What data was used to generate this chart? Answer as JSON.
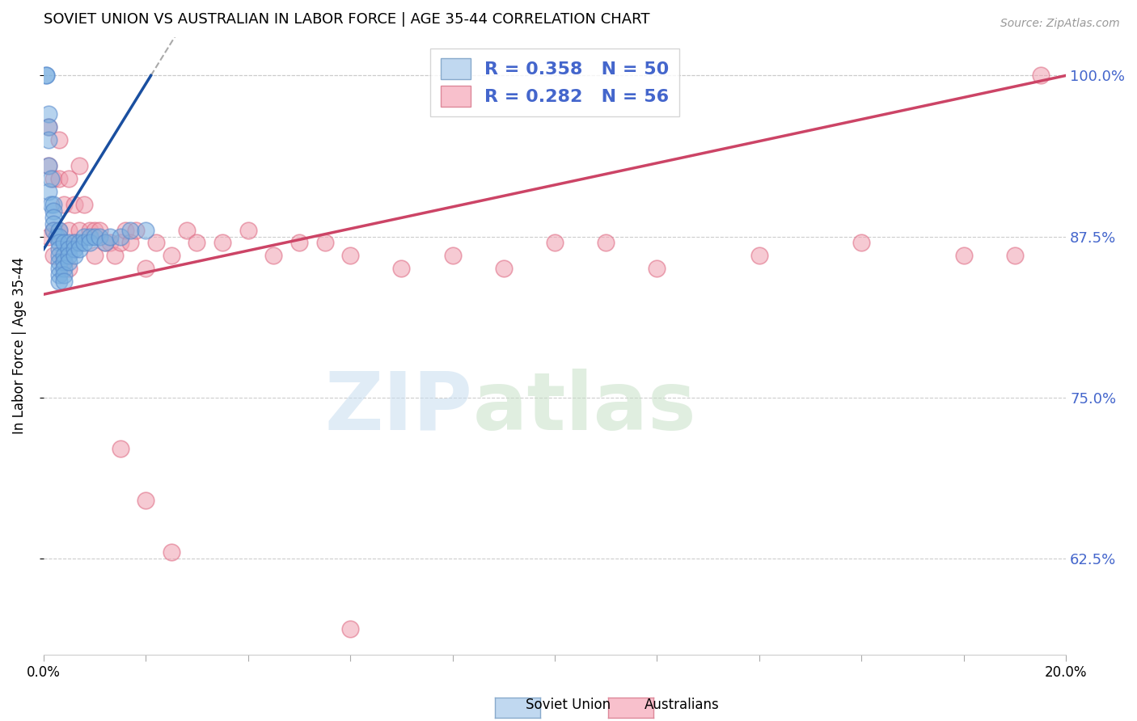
{
  "title": "SOVIET UNION VS AUSTRALIAN IN LABOR FORCE | AGE 35-44 CORRELATION CHART",
  "source": "Source: ZipAtlas.com",
  "ylabel": "In Labor Force | Age 35-44",
  "xlim": [
    0.0,
    0.2
  ],
  "ylim": [
    0.55,
    1.03
  ],
  "yticks": [
    0.625,
    0.75,
    0.875,
    1.0
  ],
  "ytick_labels": [
    "62.5%",
    "75.0%",
    "87.5%",
    "100.0%"
  ],
  "xtick_labels_shown": [
    "0.0%",
    "20.0%"
  ],
  "soviet_R": 0.358,
  "soviet_N": 50,
  "aus_R": 0.282,
  "aus_N": 56,
  "soviet_color": "#7ab0e0",
  "soviet_edge_color": "#5588cc",
  "aus_color": "#f0a0b0",
  "aus_edge_color": "#dd6680",
  "soviet_trend_color": "#1a4fa0",
  "aus_trend_color": "#cc4466",
  "ref_line_color": "#aaaaaa",
  "background_color": "#ffffff",
  "grid_color": "#cccccc",
  "right_axis_color": "#4466cc",
  "legend_box_soviet": "#c0d8f0",
  "legend_box_aus": "#f8c0cc",
  "soviet_x": [
    0.0005,
    0.0005,
    0.001,
    0.001,
    0.001,
    0.001,
    0.001,
    0.0015,
    0.0015,
    0.002,
    0.002,
    0.002,
    0.002,
    0.002,
    0.0025,
    0.003,
    0.003,
    0.003,
    0.003,
    0.003,
    0.003,
    0.003,
    0.003,
    0.003,
    0.004,
    0.004,
    0.004,
    0.004,
    0.004,
    0.004,
    0.005,
    0.005,
    0.005,
    0.005,
    0.006,
    0.006,
    0.006,
    0.007,
    0.007,
    0.008,
    0.008,
    0.009,
    0.009,
    0.01,
    0.011,
    0.012,
    0.013,
    0.015,
    0.017,
    0.02
  ],
  "soviet_y": [
    1.0,
    1.0,
    0.97,
    0.96,
    0.95,
    0.93,
    0.91,
    0.92,
    0.9,
    0.9,
    0.895,
    0.89,
    0.885,
    0.88,
    0.875,
    0.88,
    0.875,
    0.87,
    0.865,
    0.86,
    0.855,
    0.85,
    0.845,
    0.84,
    0.87,
    0.86,
    0.855,
    0.85,
    0.845,
    0.84,
    0.87,
    0.865,
    0.86,
    0.855,
    0.87,
    0.865,
    0.86,
    0.87,
    0.865,
    0.875,
    0.87,
    0.875,
    0.87,
    0.875,
    0.875,
    0.87,
    0.875,
    0.875,
    0.88,
    0.88
  ],
  "aus_x": [
    0.001,
    0.001,
    0.001,
    0.002,
    0.002,
    0.002,
    0.003,
    0.003,
    0.003,
    0.004,
    0.004,
    0.005,
    0.005,
    0.005,
    0.006,
    0.006,
    0.007,
    0.007,
    0.008,
    0.009,
    0.01,
    0.01,
    0.011,
    0.012,
    0.013,
    0.014,
    0.015,
    0.016,
    0.017,
    0.018,
    0.02,
    0.022,
    0.025,
    0.028,
    0.03,
    0.035,
    0.04,
    0.045,
    0.05,
    0.055,
    0.06,
    0.07,
    0.08,
    0.09,
    0.1,
    0.11,
    0.12,
    0.14,
    0.16,
    0.18,
    0.19,
    0.195,
    0.015,
    0.02,
    0.025,
    0.06
  ],
  "aus_y": [
    0.875,
    0.96,
    0.93,
    0.92,
    0.88,
    0.86,
    0.95,
    0.92,
    0.88,
    0.9,
    0.855,
    0.92,
    0.88,
    0.85,
    0.9,
    0.87,
    0.93,
    0.88,
    0.9,
    0.88,
    0.88,
    0.86,
    0.88,
    0.87,
    0.87,
    0.86,
    0.87,
    0.88,
    0.87,
    0.88,
    0.85,
    0.87,
    0.86,
    0.88,
    0.87,
    0.87,
    0.88,
    0.86,
    0.87,
    0.87,
    0.86,
    0.85,
    0.86,
    0.85,
    0.87,
    0.87,
    0.85,
    0.86,
    0.87,
    0.86,
    0.86,
    1.0,
    0.71,
    0.67,
    0.63,
    0.57
  ],
  "soviet_trend_x0": 0.0,
  "soviet_trend_y0": 0.865,
  "soviet_trend_x1": 0.021,
  "soviet_trend_y1": 1.0,
  "aus_trend_x0": 0.0,
  "aus_trend_y0": 0.83,
  "aus_trend_x1": 0.2,
  "aus_trend_y1": 1.0
}
